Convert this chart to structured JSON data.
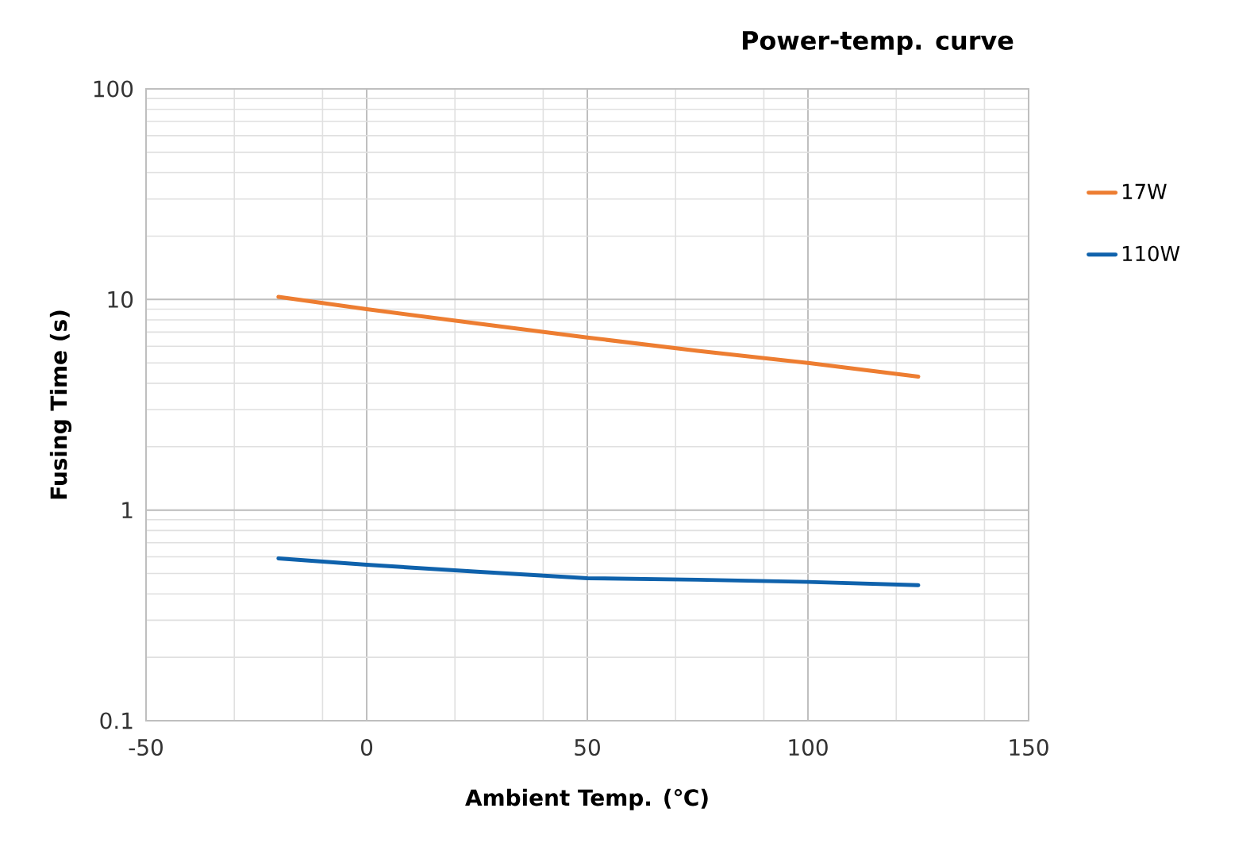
{
  "chart_data": {
    "type": "line",
    "title": "Power-temp. curve",
    "xlabel": "Ambient Temp. (℃)",
    "ylabel": "Fusing Time  (s)",
    "x": [
      -20,
      0,
      25,
      50,
      75,
      100,
      125
    ],
    "series": [
      {
        "name": "17W",
        "color": "#ed7d31",
        "values": [
          10.3,
          9.0,
          7.7,
          6.6,
          5.7,
          5.0,
          4.3
        ]
      },
      {
        "name": "110W",
        "color": "#0f62ac",
        "values": [
          0.59,
          0.55,
          0.51,
          0.475,
          0.467,
          0.456,
          0.44
        ]
      }
    ],
    "xlim": [
      -50,
      150
    ],
    "xticks": [
      -50,
      0,
      50,
      100,
      150
    ],
    "ylim": [
      0.1,
      100
    ],
    "yticks": [
      0.1,
      1,
      10,
      100
    ],
    "log": "y",
    "grid": true,
    "legend": "right",
    "marker": "none",
    "line_style": "solid"
  }
}
